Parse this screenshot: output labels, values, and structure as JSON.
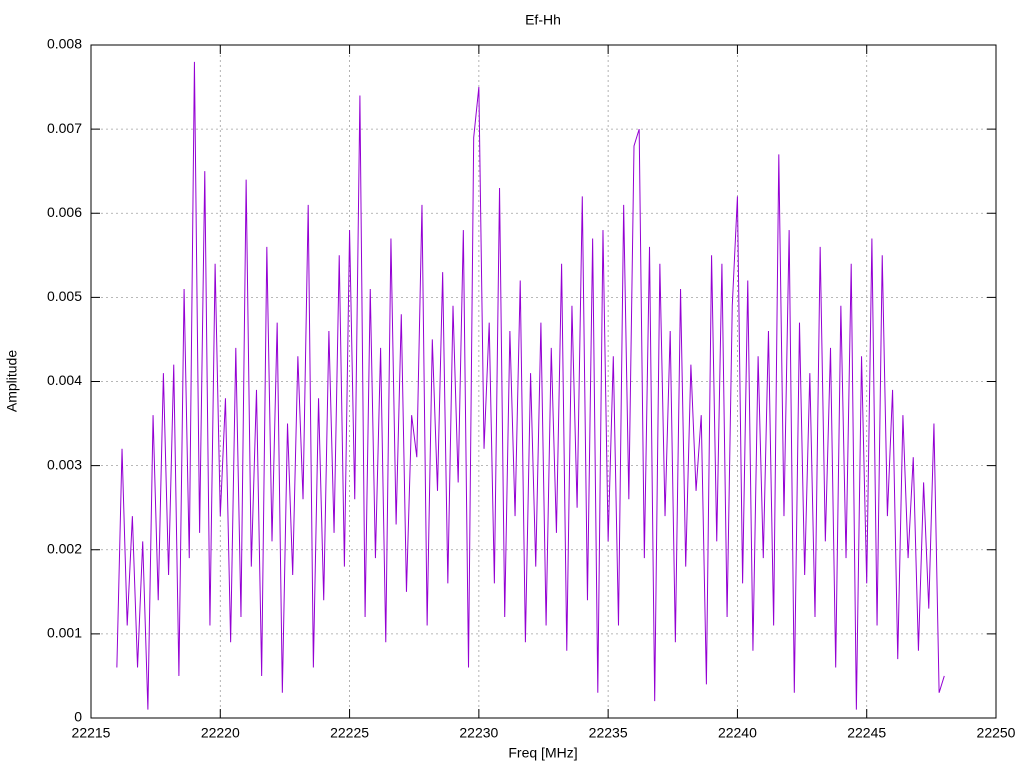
{
  "chart_data": {
    "type": "line",
    "title": "Ef-Hh",
    "xlabel": "Freq [MHz]",
    "ylabel": "Amplitude",
    "color": "#9400d3",
    "grid": true,
    "xlim": [
      22215,
      22250
    ],
    "xticks": [
      22215,
      22220,
      22225,
      22230,
      22235,
      22240,
      22245,
      22250
    ],
    "ylim": [
      0,
      0.008
    ],
    "yticks": [
      0,
      0.001,
      0.002,
      0.003,
      0.004,
      0.005,
      0.006,
      0.007,
      0.008
    ],
    "x": [
      22216,
      22216.2,
      22216.4,
      22216.6,
      22216.8,
      22217,
      22217.2,
      22217.4,
      22217.6,
      22217.8,
      22218,
      22218.2,
      22218.4,
      22218.6,
      22218.8,
      22219,
      22219.2,
      22219.4,
      22219.6,
      22219.8,
      22220,
      22220.2,
      22220.4,
      22220.6,
      22220.8,
      22221,
      22221.2,
      22221.4,
      22221.6,
      22221.8,
      22222,
      22222.2,
      22222.4,
      22222.6,
      22222.8,
      22223,
      22223.2,
      22223.4,
      22223.6,
      22223.8,
      22224,
      22224.2,
      22224.4,
      22224.6,
      22224.8,
      22225,
      22225.2,
      22225.4,
      22225.6,
      22225.8,
      22226,
      22226.2,
      22226.4,
      22226.6,
      22226.8,
      22227,
      22227.2,
      22227.4,
      22227.6,
      22227.8,
      22228,
      22228.2,
      22228.4,
      22228.6,
      22228.8,
      22229,
      22229.2,
      22229.4,
      22229.6,
      22229.8,
      22230,
      22230.2,
      22230.4,
      22230.6,
      22230.8,
      22231,
      22231.2,
      22231.4,
      22231.6,
      22231.8,
      22232,
      22232.2,
      22232.4,
      22232.6,
      22232.8,
      22233,
      22233.2,
      22233.4,
      22233.6,
      22233.8,
      22234,
      22234.2,
      22234.4,
      22234.6,
      22234.8,
      22235,
      22235.2,
      22235.4,
      22235.6,
      22235.8,
      22236,
      22236.2,
      22236.4,
      22236.6,
      22236.8,
      22237,
      22237.2,
      22237.4,
      22237.6,
      22237.8,
      22238,
      22238.2,
      22238.4,
      22238.6,
      22238.8,
      22239,
      22239.2,
      22239.4,
      22239.6,
      22239.8,
      22240,
      22240.2,
      22240.4,
      22240.6,
      22240.8,
      22241,
      22241.2,
      22241.4,
      22241.6,
      22241.8,
      22242,
      22242.2,
      22242.4,
      22242.6,
      22242.8,
      22243,
      22243.2,
      22243.4,
      22243.6,
      22243.8,
      22244,
      22244.2,
      22244.4,
      22244.6,
      22244.8,
      22245,
      22245.2,
      22245.4,
      22245.6,
      22245.8,
      22246,
      22246.2,
      22246.4,
      22246.6,
      22246.8,
      22247,
      22247.2,
      22247.4,
      22247.6,
      22247.8,
      22248
    ],
    "values": [
      0.0006,
      0.0032,
      0.0011,
      0.0024,
      0.0006,
      0.0021,
      0.0001,
      0.0036,
      0.0014,
      0.0041,
      0.0017,
      0.0042,
      0.0005,
      0.0051,
      0.0019,
      0.0078,
      0.0022,
      0.0065,
      0.0011,
      0.0054,
      0.0024,
      0.0038,
      0.0009,
      0.0044,
      0.0012,
      0.0064,
      0.0018,
      0.0039,
      0.0005,
      0.0056,
      0.0021,
      0.0047,
      0.0003,
      0.0035,
      0.0017,
      0.0043,
      0.0026,
      0.0061,
      0.0006,
      0.0038,
      0.0014,
      0.0046,
      0.0022,
      0.0055,
      0.0018,
      0.0058,
      0.0026,
      0.0074,
      0.0012,
      0.0051,
      0.0019,
      0.0044,
      0.0009,
      0.0057,
      0.0023,
      0.0048,
      0.0015,
      0.0036,
      0.0031,
      0.0061,
      0.0011,
      0.0045,
      0.0027,
      0.0053,
      0.0016,
      0.0049,
      0.0028,
      0.0058,
      0.0006,
      0.0069,
      0.0075,
      0.0032,
      0.0047,
      0.0016,
      0.0063,
      0.0012,
      0.0046,
      0.0024,
      0.0052,
      0.0009,
      0.0041,
      0.0018,
      0.0047,
      0.0011,
      0.0044,
      0.0022,
      0.0054,
      0.0008,
      0.0049,
      0.0025,
      0.0062,
      0.0014,
      0.0057,
      0.0003,
      0.0058,
      0.0021,
      0.0043,
      0.0011,
      0.0061,
      0.0026,
      0.0068,
      0.007,
      0.0019,
      0.0056,
      0.0002,
      0.0054,
      0.0024,
      0.0046,
      0.0009,
      0.0051,
      0.0018,
      0.0042,
      0.0027,
      0.0036,
      0.0004,
      0.0055,
      0.0021,
      0.0054,
      0.0012,
      0.0049,
      0.0062,
      0.0016,
      0.0052,
      0.0008,
      0.0043,
      0.0019,
      0.0046,
      0.0011,
      0.0067,
      0.0024,
      0.0058,
      0.0003,
      0.0047,
      0.0017,
      0.0041,
      0.0012,
      0.0056,
      0.0021,
      0.0044,
      0.0006,
      0.0049,
      0.0019,
      0.0054,
      0.0001,
      0.0043,
      0.0016,
      0.0057,
      0.0011,
      0.0055,
      0.0024,
      0.0039,
      0.0007,
      0.0036,
      0.0019,
      0.0031,
      0.0008,
      0.0028,
      0.0013,
      0.0035,
      0.0003,
      0.0005
    ]
  }
}
